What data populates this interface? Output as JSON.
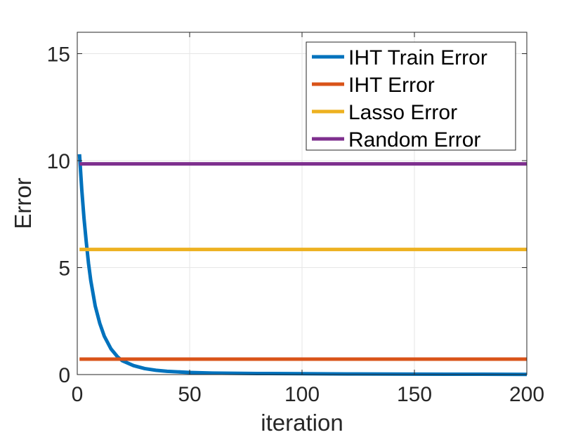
{
  "chart_data": {
    "type": "line",
    "title": "",
    "xlabel": "iteration",
    "ylabel": "Error",
    "xlim": [
      0,
      200
    ],
    "ylim": [
      0,
      16
    ],
    "xticks": [
      0,
      50,
      100,
      150,
      200
    ],
    "yticks": [
      0,
      5,
      10,
      15
    ],
    "grid": true,
    "legend_position": "top-right",
    "series": [
      {
        "name": "IHT Train Error",
        "color": "#0072BD",
        "x": [
          1,
          2,
          3,
          4,
          5,
          6,
          8,
          10,
          12,
          15,
          18,
          20,
          25,
          30,
          35,
          40,
          50,
          60,
          80,
          100,
          120,
          150,
          180,
          200
        ],
        "y": [
          10.3,
          8.65,
          7.3,
          6.2,
          5.2,
          4.4,
          3.2,
          2.4,
          1.8,
          1.2,
          0.82,
          0.65,
          0.42,
          0.28,
          0.2,
          0.15,
          0.1,
          0.07,
          0.05,
          0.04,
          0.03,
          0.02,
          0.015,
          0.01
        ]
      },
      {
        "name": "IHT Error",
        "color": "#D95319",
        "x": [
          1,
          200
        ],
        "y": [
          0.72,
          0.72
        ]
      },
      {
        "name": "Lasso Error",
        "color": "#EDB120",
        "x": [
          1,
          200
        ],
        "y": [
          5.85,
          5.85
        ]
      },
      {
        "name": "Random Error",
        "color": "#7E2F8E",
        "x": [
          1,
          200
        ],
        "y": [
          9.85,
          9.85
        ]
      }
    ]
  }
}
